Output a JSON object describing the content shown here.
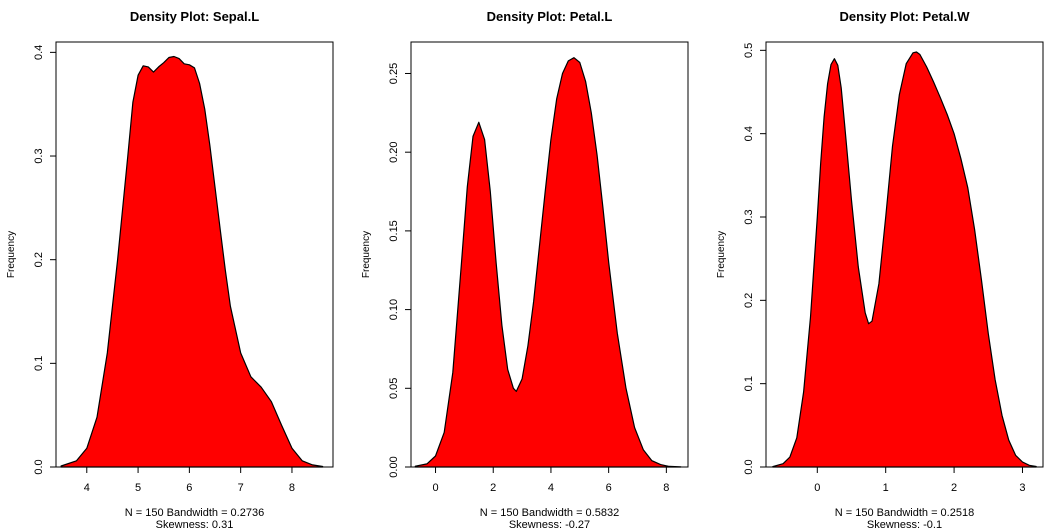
{
  "chart_data": [
    {
      "type": "area",
      "title": "Density Plot: Sepal.L",
      "ylabel": "Frequency",
      "xlim": [
        3.4,
        8.8
      ],
      "ylim": [
        0,
        0.41
      ],
      "xticks": [
        "4",
        "5",
        "6",
        "7",
        "8"
      ],
      "yticks": [
        "0.0",
        "0.1",
        "0.2",
        "0.3",
        "0.4"
      ],
      "annotation_line1": "N = 150   Bandwidth = 0.2736",
      "annotation_line2": "Skewness: 0.31",
      "fill_color": "#ff0000",
      "x": [
        3.5,
        3.8,
        4.0,
        4.2,
        4.4,
        4.6,
        4.8,
        4.9,
        5.0,
        5.1,
        5.2,
        5.3,
        5.4,
        5.5,
        5.6,
        5.7,
        5.8,
        5.9,
        6.0,
        6.1,
        6.2,
        6.3,
        6.4,
        6.5,
        6.6,
        6.7,
        6.8,
        7.0,
        7.2,
        7.4,
        7.6,
        7.8,
        8.0,
        8.2,
        8.4,
        8.6
      ],
      "y": [
        0.001,
        0.006,
        0.018,
        0.048,
        0.11,
        0.2,
        0.3,
        0.352,
        0.378,
        0.387,
        0.386,
        0.381,
        0.386,
        0.39,
        0.395,
        0.396,
        0.394,
        0.389,
        0.388,
        0.385,
        0.37,
        0.345,
        0.31,
        0.27,
        0.23,
        0.19,
        0.155,
        0.11,
        0.087,
        0.077,
        0.063,
        0.04,
        0.018,
        0.006,
        0.002,
        0.0005
      ]
    },
    {
      "type": "area",
      "title": "Density Plot: Petal.L",
      "ylabel": "Frequency",
      "xlim": [
        -0.85,
        8.75
      ],
      "ylim": [
        0,
        0.27
      ],
      "xticks": [
        "0",
        "2",
        "4",
        "6",
        "8"
      ],
      "yticks": [
        "0.00",
        "0.05",
        "0.10",
        "0.15",
        "0.20",
        "0.25"
      ],
      "annotation_line1": "N = 150   Bandwidth = 0.5832",
      "annotation_line2": "Skewness: -0.27",
      "fill_color": "#ff0000",
      "x": [
        -0.7,
        -0.3,
        0.0,
        0.3,
        0.6,
        0.9,
        1.1,
        1.3,
        1.5,
        1.7,
        1.9,
        2.1,
        2.3,
        2.5,
        2.7,
        2.8,
        3.0,
        3.2,
        3.4,
        3.6,
        3.8,
        4.0,
        4.2,
        4.4,
        4.6,
        4.8,
        5.0,
        5.2,
        5.4,
        5.6,
        5.8,
        6.0,
        6.3,
        6.6,
        6.9,
        7.2,
        7.5,
        7.8,
        8.1,
        8.5
      ],
      "y": [
        0.0005,
        0.002,
        0.007,
        0.022,
        0.06,
        0.13,
        0.178,
        0.21,
        0.219,
        0.208,
        0.175,
        0.13,
        0.09,
        0.062,
        0.05,
        0.048,
        0.056,
        0.077,
        0.105,
        0.14,
        0.175,
        0.208,
        0.234,
        0.25,
        0.258,
        0.26,
        0.257,
        0.245,
        0.225,
        0.198,
        0.165,
        0.13,
        0.085,
        0.05,
        0.025,
        0.011,
        0.004,
        0.0015,
        0.0004,
        0.0001
      ]
    },
    {
      "type": "area",
      "title": "Density Plot: Petal.W",
      "ylabel": "Frequency",
      "xlim": [
        -0.75,
        3.3
      ],
      "ylim": [
        0,
        0.51
      ],
      "xticks": [
        "0",
        "1",
        "2",
        "3"
      ],
      "yticks": [
        "0.0",
        "0.1",
        "0.2",
        "0.3",
        "0.4",
        "0.5"
      ],
      "annotation_line1": "N = 150   Bandwidth = 0.2518",
      "annotation_line2": "Skewness: -0.1",
      "fill_color": "#ff0000",
      "x": [
        -0.65,
        -0.5,
        -0.4,
        -0.3,
        -0.2,
        -0.1,
        0.0,
        0.05,
        0.1,
        0.15,
        0.2,
        0.25,
        0.3,
        0.35,
        0.4,
        0.5,
        0.6,
        0.7,
        0.75,
        0.8,
        0.9,
        1.0,
        1.1,
        1.2,
        1.3,
        1.4,
        1.45,
        1.5,
        1.6,
        1.7,
        1.8,
        1.9,
        2.0,
        2.1,
        2.2,
        2.3,
        2.4,
        2.5,
        2.6,
        2.7,
        2.8,
        2.9,
        3.0,
        3.1,
        3.2
      ],
      "y": [
        0.0005,
        0.004,
        0.012,
        0.035,
        0.09,
        0.18,
        0.3,
        0.365,
        0.42,
        0.46,
        0.483,
        0.49,
        0.482,
        0.455,
        0.41,
        0.32,
        0.24,
        0.185,
        0.172,
        0.175,
        0.22,
        0.3,
        0.385,
        0.447,
        0.484,
        0.497,
        0.498,
        0.495,
        0.48,
        0.462,
        0.443,
        0.423,
        0.4,
        0.37,
        0.335,
        0.285,
        0.225,
        0.16,
        0.105,
        0.062,
        0.032,
        0.014,
        0.006,
        0.002,
        0.0006
      ]
    }
  ]
}
